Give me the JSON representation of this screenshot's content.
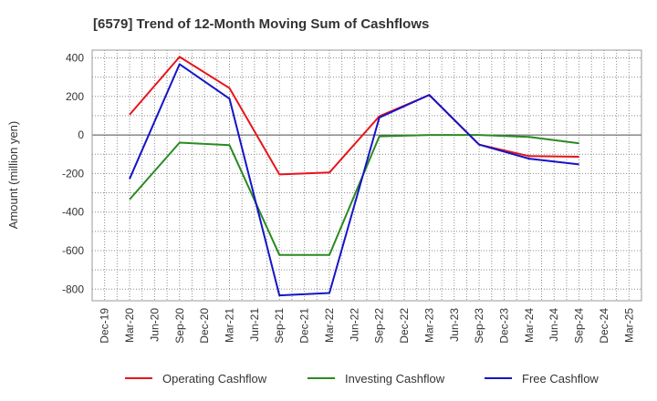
{
  "chart_data": {
    "type": "line",
    "title": "[6579]  Trend of 12-Month Moving Sum of Cashflows",
    "xlabel": "",
    "ylabel": "Amount (million yen)",
    "ylim": [
      -860,
      440
    ],
    "yticks": [
      400,
      200,
      0,
      -200,
      -400,
      -600,
      -800
    ],
    "xticks": [
      "Dec-19",
      "Mar-20",
      "Jun-20",
      "Sep-20",
      "Dec-20",
      "Mar-21",
      "Jun-21",
      "Sep-21",
      "Dec-21",
      "Mar-22",
      "Jun-22",
      "Sep-22",
      "Dec-22",
      "Mar-23",
      "Jun-23",
      "Sep-23",
      "Dec-23",
      "Mar-24",
      "Jun-24",
      "Sep-24",
      "Dec-24",
      "Mar-25"
    ],
    "grid": true,
    "legend_position": "bottom",
    "series": [
      {
        "name": "Operating Cashflow",
        "color": "#e8141b",
        "points": [
          {
            "x": "Mar-20",
            "y": 105
          },
          {
            "x": "Sep-20",
            "y": 405
          },
          {
            "x": "Mar-21",
            "y": 243
          },
          {
            "x": "Sep-21",
            "y": -205
          },
          {
            "x": "Mar-22",
            "y": -195
          },
          {
            "x": "Sep-22",
            "y": 97
          },
          {
            "x": "Mar-23",
            "y": 207
          },
          {
            "x": "Sep-23",
            "y": -50
          },
          {
            "x": "Mar-24",
            "y": -110
          },
          {
            "x": "Sep-24",
            "y": -113
          }
        ]
      },
      {
        "name": "Investing Cashflow",
        "color": "#2a8a22",
        "points": [
          {
            "x": "Mar-20",
            "y": -335
          },
          {
            "x": "Sep-20",
            "y": -40
          },
          {
            "x": "Mar-21",
            "y": -53
          },
          {
            "x": "Sep-21",
            "y": -622
          },
          {
            "x": "Mar-22",
            "y": -622
          },
          {
            "x": "Sep-22",
            "y": -7
          },
          {
            "x": "Mar-23",
            "y": 0
          },
          {
            "x": "Sep-23",
            "y": 0
          },
          {
            "x": "Mar-24",
            "y": -10
          },
          {
            "x": "Sep-24",
            "y": -43
          }
        ]
      },
      {
        "name": "Free Cashflow",
        "color": "#1414c8",
        "points": [
          {
            "x": "Mar-20",
            "y": -228
          },
          {
            "x": "Sep-20",
            "y": 367
          },
          {
            "x": "Mar-21",
            "y": 188
          },
          {
            "x": "Sep-21",
            "y": -832
          },
          {
            "x": "Mar-22",
            "y": -820
          },
          {
            "x": "Sep-22",
            "y": 90
          },
          {
            "x": "Mar-23",
            "y": 208
          },
          {
            "x": "Sep-23",
            "y": -50
          },
          {
            "x": "Mar-24",
            "y": -123
          },
          {
            "x": "Sep-24",
            "y": -153
          }
        ]
      }
    ]
  }
}
